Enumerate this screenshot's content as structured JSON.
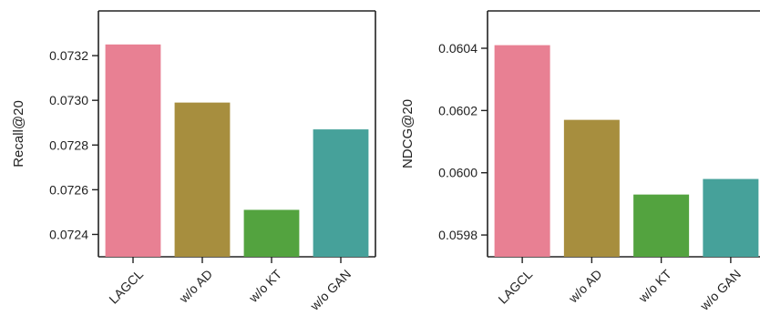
{
  "chart_data": [
    {
      "type": "bar",
      "categories": [
        "LAGCL",
        "w/o AD",
        "w/o KT",
        "w/o GAN"
      ],
      "values": [
        0.07325,
        0.07299,
        0.07251,
        0.07287
      ],
      "colors": [
        "#e88093",
        "#a78e3e",
        "#53a33f",
        "#46a19a"
      ],
      "ylabel": "Recall@20",
      "ylim": [
        0.0723,
        0.0734
      ],
      "yticks": [
        0.0724,
        0.0726,
        0.0728,
        0.073,
        0.0732
      ],
      "ytick_labels": [
        "0.0724",
        "0.0726",
        "0.0728",
        "0.0730",
        "0.0732"
      ]
    },
    {
      "type": "bar",
      "categories": [
        "LAGCL",
        "w/o AD",
        "w/o KT",
        "w/o GAN"
      ],
      "values": [
        0.06041,
        0.06017,
        0.05993,
        0.05998
      ],
      "colors": [
        "#e88093",
        "#a78e3e",
        "#53a33f",
        "#46a19a"
      ],
      "ylabel": "NDCG@20",
      "ylim": [
        0.05973,
        0.06052
      ],
      "yticks": [
        0.0598,
        0.06,
        0.0602,
        0.0604
      ],
      "ytick_labels": [
        "0.0598",
        "0.0600",
        "0.0602",
        "0.0604"
      ]
    }
  ]
}
